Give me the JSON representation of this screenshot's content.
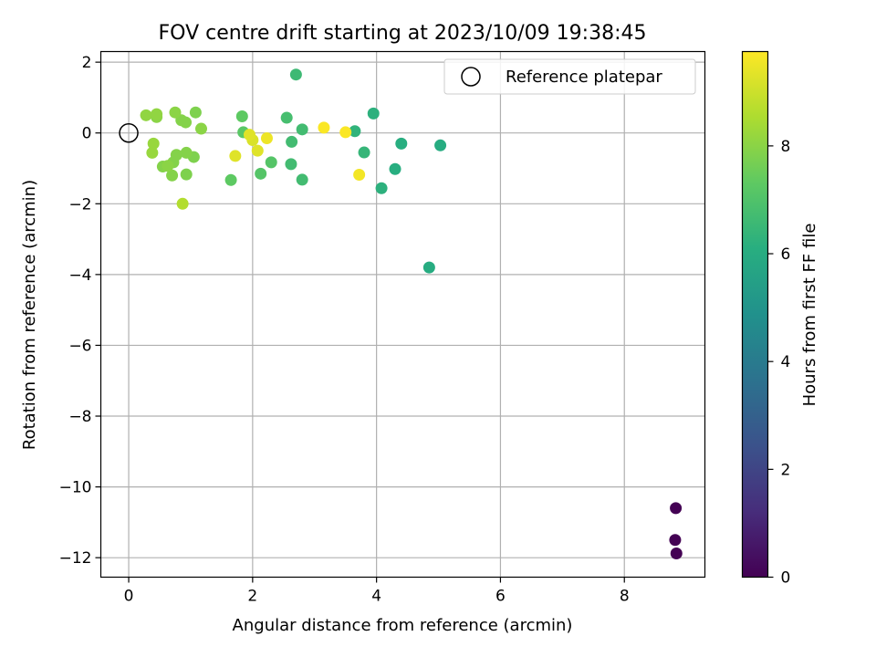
{
  "chart_data": {
    "type": "scatter",
    "title": "FOV centre drift starting at 2023/10/09 19:38:45",
    "xlabel": "Angular distance from reference (arcmin)",
    "ylabel": "Rotation from reference (arcmin)",
    "xlim": [
      -0.45,
      9.3
    ],
    "ylim": [
      -12.55,
      2.3
    ],
    "xticks": [
      0,
      2,
      4,
      6,
      8
    ],
    "xtick_labels": [
      "0",
      "2",
      "4",
      "6",
      "8"
    ],
    "yticks": [
      2,
      0,
      -2,
      -4,
      -6,
      -8,
      -10,
      -12
    ],
    "ytick_labels": [
      "2",
      "0",
      "−2",
      "−4",
      "−6",
      "−8",
      "−10",
      "−12"
    ],
    "grid": true,
    "legend": {
      "position": "top-right",
      "entries": [
        {
          "label": "Reference platepar",
          "marker": "open-circle"
        }
      ]
    },
    "reference_point": {
      "x": 0,
      "y": 0,
      "label": "Reference platepar"
    },
    "colorbar": {
      "label": "Hours from first FF file",
      "colormap": "viridis",
      "range": [
        0,
        9.75
      ],
      "ticks": [
        0,
        2,
        4,
        6,
        8
      ],
      "tick_labels": [
        "0",
        "2",
        "4",
        "6",
        "8"
      ]
    },
    "points": [
      {
        "x": 8.83,
        "y": -10.6,
        "hours": 0.0
      },
      {
        "x": 8.82,
        "y": -11.5,
        "hours": 0.0
      },
      {
        "x": 8.84,
        "y": -11.88,
        "hours": 0.0
      },
      {
        "x": 4.85,
        "y": -3.8,
        "hours": 6.0
      },
      {
        "x": 5.03,
        "y": -0.35,
        "hours": 6.0
      },
      {
        "x": 4.4,
        "y": -0.3,
        "hours": 6.1
      },
      {
        "x": 4.3,
        "y": -1.02,
        "hours": 6.1
      },
      {
        "x": 4.08,
        "y": -1.56,
        "hours": 6.2
      },
      {
        "x": 3.95,
        "y": 0.55,
        "hours": 6.2
      },
      {
        "x": 3.65,
        "y": 0.05,
        "hours": 6.3
      },
      {
        "x": 3.8,
        "y": -0.55,
        "hours": 6.4
      },
      {
        "x": 2.7,
        "y": 1.65,
        "hours": 6.6
      },
      {
        "x": 2.8,
        "y": 0.1,
        "hours": 6.7
      },
      {
        "x": 2.63,
        "y": -0.25,
        "hours": 6.7
      },
      {
        "x": 2.62,
        "y": -0.88,
        "hours": 6.7
      },
      {
        "x": 2.8,
        "y": -1.32,
        "hours": 6.7
      },
      {
        "x": 2.55,
        "y": 0.43,
        "hours": 6.8
      },
      {
        "x": 2.3,
        "y": -0.83,
        "hours": 7.1
      },
      {
        "x": 2.13,
        "y": -1.15,
        "hours": 7.1
      },
      {
        "x": 1.85,
        "y": 0.02,
        "hours": 7.2
      },
      {
        "x": 1.83,
        "y": 0.47,
        "hours": 7.3
      },
      {
        "x": 1.65,
        "y": -1.33,
        "hours": 7.3
      },
      {
        "x": 1.08,
        "y": 0.58,
        "hours": 7.8
      },
      {
        "x": 1.05,
        "y": -0.68,
        "hours": 7.8
      },
      {
        "x": 0.93,
        "y": -1.17,
        "hours": 7.8
      },
      {
        "x": 0.92,
        "y": 0.3,
        "hours": 7.9
      },
      {
        "x": 0.85,
        "y": 0.36,
        "hours": 7.9
      },
      {
        "x": 0.93,
        "y": -0.56,
        "hours": 7.9
      },
      {
        "x": 0.77,
        "y": -0.62,
        "hours": 7.9
      },
      {
        "x": 0.75,
        "y": 0.58,
        "hours": 8.0
      },
      {
        "x": 0.72,
        "y": -0.83,
        "hours": 7.9
      },
      {
        "x": 0.7,
        "y": -1.2,
        "hours": 7.9
      },
      {
        "x": 0.55,
        "y": -0.95,
        "hours": 7.9
      },
      {
        "x": 0.63,
        "y": -0.93,
        "hours": 8.0
      },
      {
        "x": 0.45,
        "y": 0.45,
        "hours": 8.0
      },
      {
        "x": 0.45,
        "y": 0.53,
        "hours": 8.1
      },
      {
        "x": 0.28,
        "y": 0.5,
        "hours": 8.1
      },
      {
        "x": 0.4,
        "y": -0.3,
        "hours": 8.2
      },
      {
        "x": 0.38,
        "y": -0.56,
        "hours": 8.2
      },
      {
        "x": 1.17,
        "y": 0.12,
        "hours": 8.0
      },
      {
        "x": 0.87,
        "y": -2.0,
        "hours": 8.6
      },
      {
        "x": 2.0,
        "y": -0.2,
        "hours": 9.2
      },
      {
        "x": 1.95,
        "y": -0.05,
        "hours": 9.3
      },
      {
        "x": 2.08,
        "y": -0.5,
        "hours": 9.3
      },
      {
        "x": 2.23,
        "y": -0.15,
        "hours": 9.5
      },
      {
        "x": 1.72,
        "y": -0.65,
        "hours": 9.3
      },
      {
        "x": 3.15,
        "y": 0.15,
        "hours": 9.7
      },
      {
        "x": 3.5,
        "y": 0.02,
        "hours": 9.7
      },
      {
        "x": 3.72,
        "y": -1.18,
        "hours": 9.6
      }
    ]
  }
}
